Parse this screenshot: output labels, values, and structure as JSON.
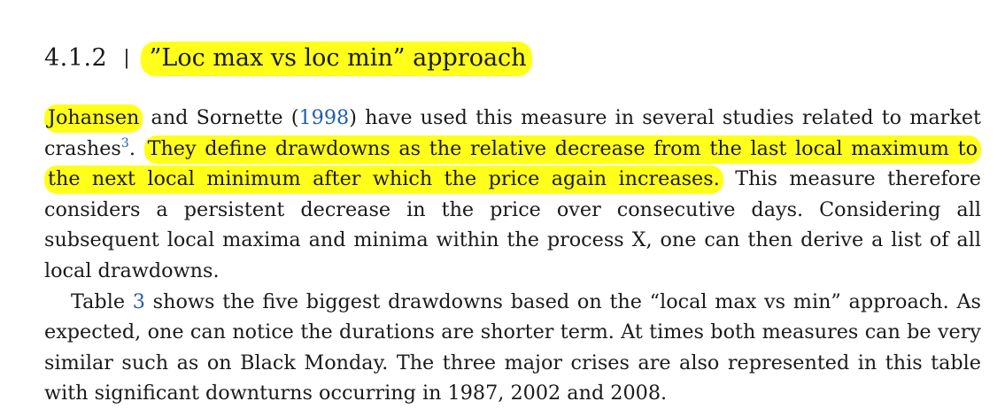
{
  "section": {
    "number": "4.1.2",
    "separator": "|",
    "title": "”Loc max vs loc min” approach"
  },
  "paragraph1": {
    "author_first": "Johansen",
    "and_text": " and Sornette (",
    "citation_year": "1998",
    "after_citation": ") have used this measure in several studies related to market crashes",
    "footnote": "3",
    "period": ". ",
    "highlighted_sentence": "They define drawdowns as the relative decrease from the last local maximum to the next local minimum after which the price again increases.",
    "rest": " This measure therefore considers a persistent decrease in the price over consecutive days. Considering all subsequent local maxima and minima within the process X, one can then derive a list of all local drawdowns."
  },
  "paragraph2": {
    "before_ref": "Table ",
    "table_ref": "3",
    "after_ref": " shows the five biggest drawdowns based on the “local max vs min” approach. As expected, one can notice the durations are shorter term. At times both measures can be very similar such as on Black Monday. The three major crises are also represented in this table with significant downturns occurring in 1987, 2002 and 2008."
  },
  "colors": {
    "highlight": "#ffff1a",
    "link": "#1f5fb0",
    "text": "#1a1a1a"
  }
}
